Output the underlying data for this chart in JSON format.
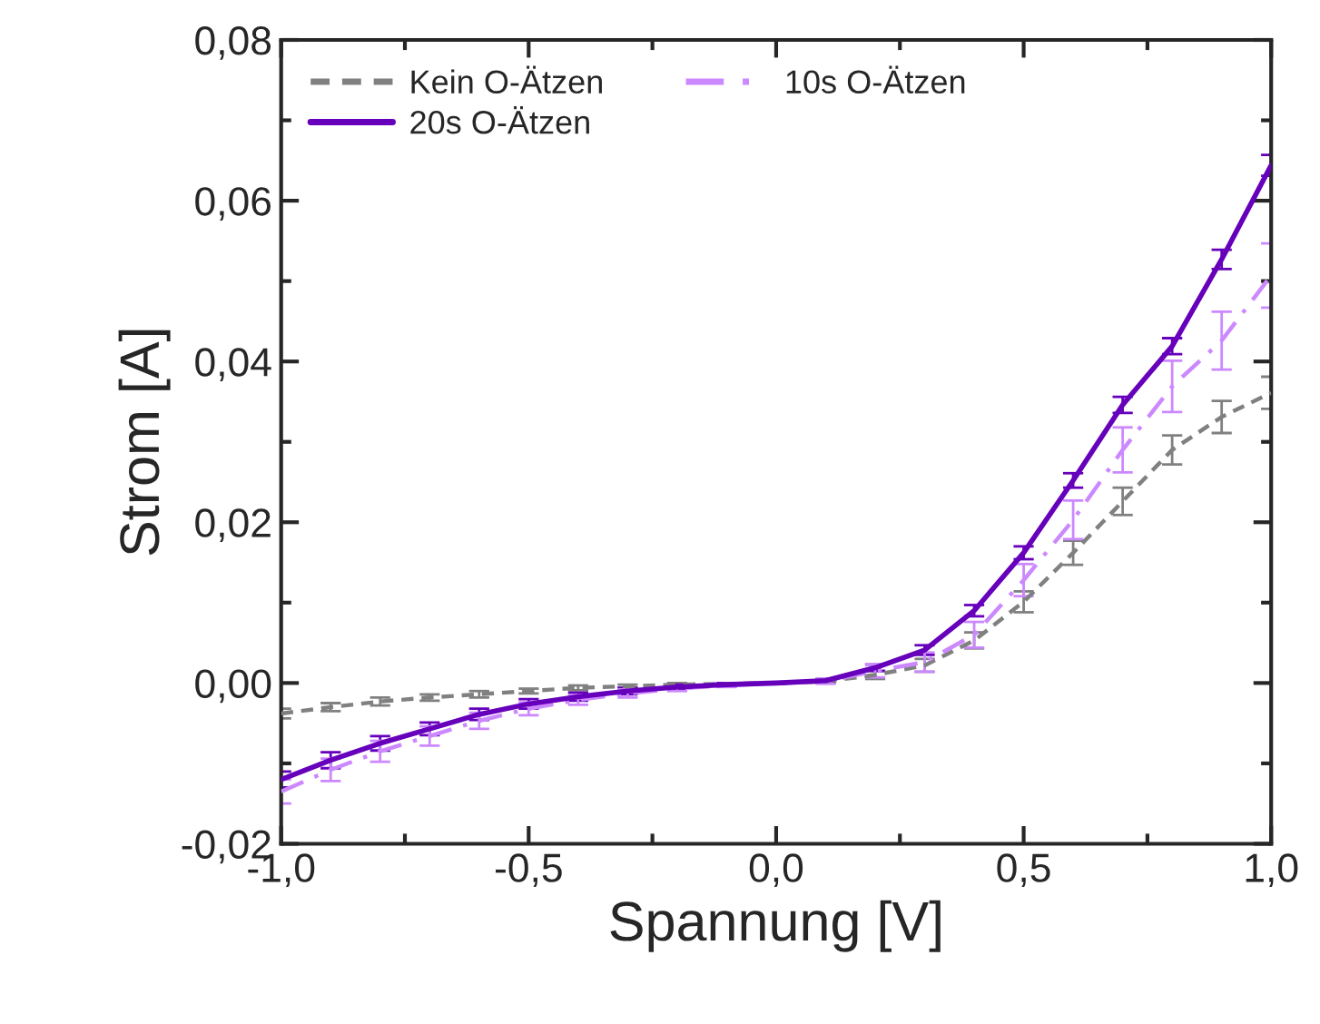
{
  "chart_data": {
    "type": "line",
    "xlabel": "Spannung [V]",
    "ylabel": "Strom [A]",
    "x": [
      -1.0,
      -0.9,
      -0.8,
      -0.7,
      -0.6,
      -0.5,
      -0.4,
      -0.3,
      -0.2,
      -0.1,
      0.0,
      0.1,
      0.2,
      0.3,
      0.4,
      0.5,
      0.6,
      0.7,
      0.8,
      0.9,
      1.0
    ],
    "series": [
      {
        "name": "Kein O-Ätzen",
        "color": "#808080",
        "line_style": "dashed",
        "values": [
          -0.0038,
          -0.003,
          -0.0023,
          -0.0018,
          -0.0014,
          -0.001,
          -0.0006,
          -0.0004,
          -0.0002,
          -0.0001,
          0.0,
          0.0002,
          0.001,
          0.0022,
          0.0053,
          0.0101,
          0.0162,
          0.0226,
          0.029,
          0.0331,
          0.0361
        ],
        "errors": [
          0.0006,
          0.0005,
          0.0005,
          0.0004,
          0.0004,
          0.0003,
          0.0003,
          0.0002,
          0.0002,
          0.0001,
          0.0001,
          0.0002,
          0.0005,
          0.0008,
          0.001,
          0.0013,
          0.0015,
          0.0017,
          0.0018,
          0.002,
          0.002
        ]
      },
      {
        "name": "20s O-Ätzen",
        "color": "#6600bb",
        "line_style": "solid",
        "values": [
          -0.012,
          -0.0096,
          -0.0075,
          -0.0057,
          -0.0039,
          -0.0026,
          -0.0017,
          -0.001,
          -0.0005,
          -0.0002,
          0.0,
          0.0003,
          0.0019,
          0.0041,
          0.009,
          0.0162,
          0.0252,
          0.0346,
          0.0419,
          0.0527,
          0.0644
        ],
        "errors": [
          0.001,
          0.001,
          0.0009,
          0.0008,
          0.0007,
          0.0006,
          0.0005,
          0.0004,
          0.0003,
          0.0002,
          0.0001,
          0.0002,
          0.0004,
          0.0006,
          0.0007,
          0.0008,
          0.0009,
          0.001,
          0.001,
          0.0012,
          0.0013
        ]
      },
      {
        "name": "10s O-Ätzen",
        "color": "#cc88ff",
        "line_style": "dashdot",
        "values": [
          -0.0135,
          -0.0108,
          -0.0085,
          -0.0066,
          -0.0047,
          -0.0032,
          -0.0021,
          -0.0013,
          -0.0007,
          -0.0003,
          0.0,
          0.0002,
          0.0015,
          0.0026,
          0.006,
          0.0128,
          0.0203,
          0.029,
          0.0369,
          0.0426,
          0.0507
        ],
        "errors": [
          0.0015,
          0.0014,
          0.0013,
          0.0012,
          0.001,
          0.0008,
          0.0006,
          0.0005,
          0.0003,
          0.0002,
          0.0001,
          0.0003,
          0.0008,
          0.0012,
          0.0016,
          0.002,
          0.0024,
          0.0028,
          0.0032,
          0.0036,
          0.004
        ]
      }
    ],
    "xlim": [
      -1.0,
      1.0
    ],
    "ylim": [
      -0.02,
      0.08
    ],
    "xticks": [
      {
        "value": -1.0,
        "label": "-1,0"
      },
      {
        "value": -0.5,
        "label": "-0,5"
      },
      {
        "value": 0.0,
        "label": "0,0"
      },
      {
        "value": 0.5,
        "label": "0,5"
      },
      {
        "value": 1.0,
        "label": "1,0"
      }
    ],
    "yticks": [
      {
        "value": -0.02,
        "label": "-0,02"
      },
      {
        "value": 0.0,
        "label": "0,00"
      },
      {
        "value": 0.02,
        "label": "0,02"
      },
      {
        "value": 0.04,
        "label": "0,04"
      },
      {
        "value": 0.06,
        "label": "0,06"
      },
      {
        "value": 0.08,
        "label": "0,08"
      }
    ],
    "grid": false,
    "legend": "top left"
  }
}
